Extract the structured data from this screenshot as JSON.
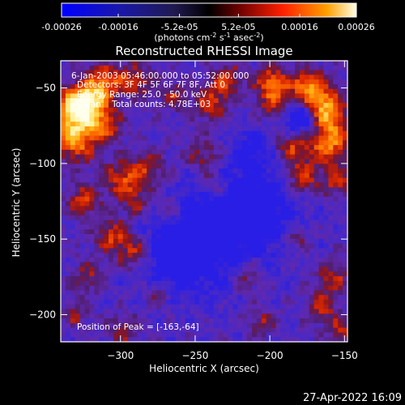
{
  "colorbar": {
    "ticks": [
      "-0.00026",
      "-0.00016",
      "-5.2e-05",
      "5.2e-05",
      "0.00016",
      "0.00026"
    ],
    "tick_values": [
      -0.00026,
      -0.00016,
      -5.2e-05,
      5.2e-05,
      0.00016,
      0.00026
    ],
    "range": [
      -0.00026,
      0.00026
    ],
    "unit_main": "(photons cm",
    "unit_sup1": "-2",
    "unit_mid": " s",
    "unit_sup2": "-1",
    "unit_end": " asec",
    "unit_sup3": "-2",
    "unit_close": ")"
  },
  "chart_data": {
    "type": "heatmap",
    "title": "Reconstructed RHESSI Image",
    "xlabel": "Heliocentric X (arcsec)",
    "ylabel": "Heliocentric Y (arcsec)",
    "xlim": [
      -340,
      -148
    ],
    "ylim": [
      -218,
      -32
    ],
    "xticks": [
      -300,
      -250,
      -200,
      -150
    ],
    "yticks": [
      -50,
      -100,
      -150,
      -200
    ],
    "annotations": [
      "6-Jan-2003 05:46:00.000 to 05:52:00.000",
      "Detectors: 3F 4F 5F 6F 7F 8F, Att 0",
      "Energy Range: 25.0 - 50.0 keV",
      "Clean    Total counts: 4.78E+03"
    ],
    "peak_label": "Position of Peak = [-163,-64]",
    "peak": [
      -163,
      -64
    ],
    "grid": "off",
    "colors": {
      "frame": "#ffffff",
      "background": "#000000"
    }
  },
  "footer": {
    "timestamp": "27-Apr-2022 16:09"
  }
}
